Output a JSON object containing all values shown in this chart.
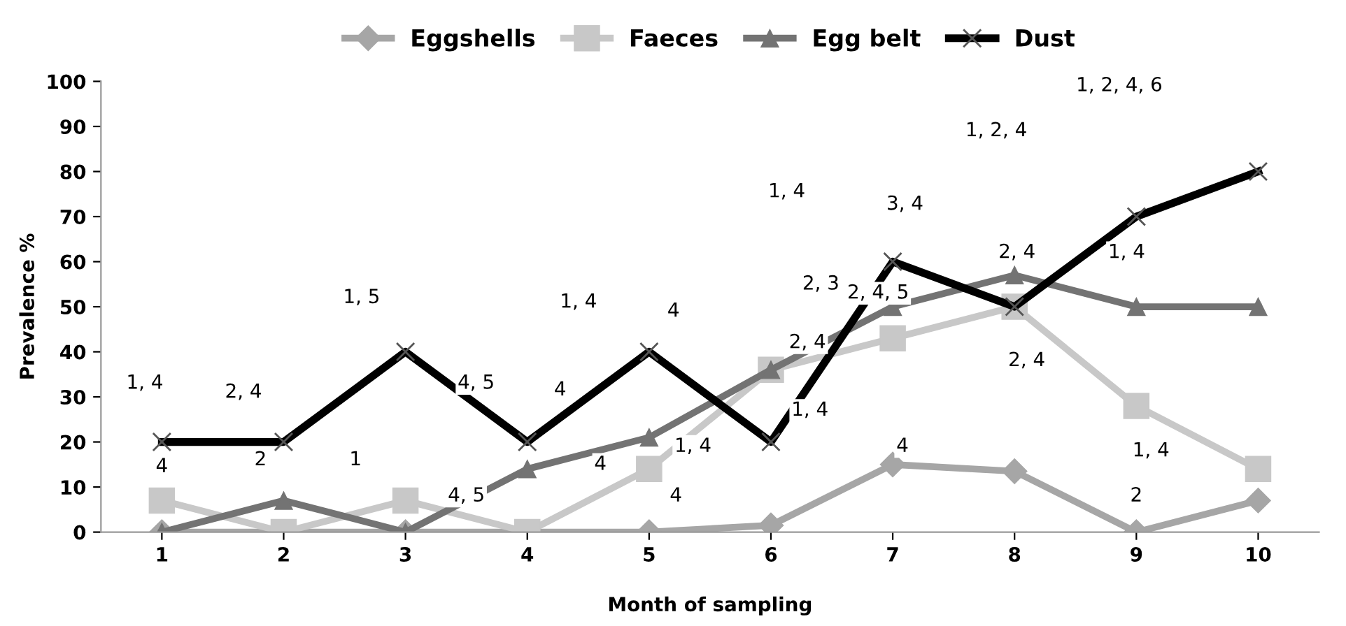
{
  "chart_data": {
    "type": "line",
    "xlabel": "Month of sampling",
    "ylabel": "Prevalence %",
    "x": [
      1,
      2,
      3,
      4,
      5,
      6,
      7,
      8,
      9,
      10
    ],
    "xlim": [
      0.5,
      10.5
    ],
    "xticks": [
      1,
      2,
      3,
      4,
      5,
      6,
      7,
      8,
      9,
      10
    ],
    "ylim": [
      0,
      100
    ],
    "yticks": [
      0,
      10,
      20,
      30,
      40,
      50,
      60,
      70,
      80,
      90,
      100
    ],
    "grid": false,
    "legend": "top",
    "series": [
      {
        "name": "Eggshells",
        "color": "#a6a6a6",
        "marker": "diamond",
        "values": [
          0,
          0,
          0,
          0,
          0,
          1.5,
          15,
          13.5,
          0,
          7
        ]
      },
      {
        "name": "Faeces",
        "color": "#c8c8c8",
        "marker": "square",
        "values": [
          7,
          0,
          7,
          0,
          14,
          36,
          43,
          50,
          28,
          14
        ]
      },
      {
        "name": "Egg belt",
        "color": "#737373",
        "marker": "triangle",
        "values": [
          0,
          7,
          0,
          14,
          21,
          36,
          50,
          57,
          50,
          50
        ]
      },
      {
        "name": "Dust",
        "color": "#000000",
        "marker": "cross",
        "values": [
          20,
          20,
          40,
          20,
          40,
          20,
          60,
          50,
          70,
          80
        ]
      }
    ],
    "annotations": [
      "1, 4",
      "4",
      "2, 4",
      "2",
      "1, 5",
      "1",
      "4, 5",
      "4, 5",
      "1, 4",
      "4",
      "4",
      "4",
      "4",
      "1, 4",
      "1, 4",
      "2, 3",
      "2, 4",
      "1, 4",
      "3, 4",
      "2, 4, 5",
      "4",
      "1, 2, 4",
      "2, 4",
      "2, 4",
      "1, 2, 4, 6",
      "1, 4",
      "1, 4",
      "2"
    ]
  }
}
